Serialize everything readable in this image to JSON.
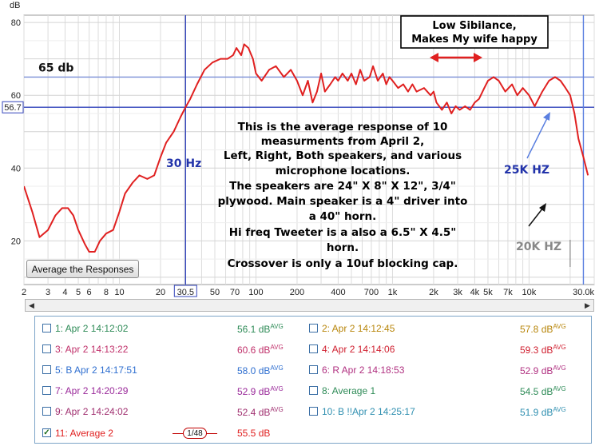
{
  "chart_data": {
    "type": "line",
    "title": "",
    "xlabel": "",
    "ylabel": "dB",
    "x_scale": "log",
    "xlim": [
      2,
      30000
    ],
    "ylim": [
      8,
      82
    ],
    "grid": true,
    "x_tick_labels": [
      {
        "value": 2,
        "label": "2"
      },
      {
        "value": 3,
        "label": "3"
      },
      {
        "value": 4,
        "label": "4"
      },
      {
        "value": 5,
        "label": "5"
      },
      {
        "value": 6,
        "label": "6"
      },
      {
        "value": 8,
        "label": "8"
      },
      {
        "value": 10,
        "label": "10"
      },
      {
        "value": 20,
        "label": "20"
      },
      {
        "value": 50,
        "label": "50"
      },
      {
        "value": 70,
        "label": "70"
      },
      {
        "value": 100,
        "label": "100"
      },
      {
        "value": 200,
        "label": "200"
      },
      {
        "value": 400,
        "label": "400"
      },
      {
        "value": 700,
        "label": "700"
      },
      {
        "value": 1000,
        "label": "1k"
      },
      {
        "value": 2000,
        "label": "2k"
      },
      {
        "value": 3000,
        "label": "3k"
      },
      {
        "value": 4000,
        "label": "4k"
      },
      {
        "value": 5000,
        "label": "5k"
      },
      {
        "value": 7000,
        "label": "7k"
      },
      {
        "value": 10000,
        "label": "10k"
      },
      {
        "value": 30000,
        "label": "30.0k"
      }
    ],
    "y_tick_labels": [
      {
        "value": 80,
        "label": "80"
      },
      {
        "value": 60,
        "label": "60"
      },
      {
        "value": 40,
        "label": "40"
      },
      {
        "value": 20,
        "label": "20"
      }
    ],
    "cursor": {
      "x": 30.5,
      "x_label": "30.5",
      "y": 56.7,
      "y_label": "56.7"
    },
    "marker_lines": [
      {
        "y": 65,
        "label": "65 db"
      },
      {
        "x": 25000,
        "label": "25K HZ"
      },
      {
        "x": 20000,
        "label": "20K HZ"
      }
    ],
    "series": [
      {
        "name": "11: Average 2",
        "color": "#e02020",
        "points": [
          [
            2,
            35
          ],
          [
            2.3,
            28
          ],
          [
            2.6,
            21
          ],
          [
            3,
            23
          ],
          [
            3.4,
            27
          ],
          [
            3.8,
            29
          ],
          [
            4.2,
            29
          ],
          [
            4.6,
            27
          ],
          [
            5,
            23
          ],
          [
            5.6,
            19
          ],
          [
            6,
            17
          ],
          [
            6.6,
            17
          ],
          [
            7.2,
            20
          ],
          [
            8,
            22
          ],
          [
            9,
            23
          ],
          [
            10,
            28
          ],
          [
            11,
            33
          ],
          [
            12.5,
            36
          ],
          [
            14,
            38
          ],
          [
            16,
            37
          ],
          [
            18,
            38
          ],
          [
            20,
            43
          ],
          [
            22,
            47
          ],
          [
            25,
            50
          ],
          [
            28,
            54
          ],
          [
            30.5,
            56.7
          ],
          [
            33,
            59
          ],
          [
            37,
            63
          ],
          [
            42,
            67
          ],
          [
            48,
            69
          ],
          [
            55,
            70
          ],
          [
            62,
            70
          ],
          [
            68,
            71
          ],
          [
            72,
            73
          ],
          [
            78,
            71
          ],
          [
            82,
            74
          ],
          [
            88,
            73
          ],
          [
            95,
            70
          ],
          [
            100,
            66
          ],
          [
            110,
            64
          ],
          [
            125,
            67
          ],
          [
            140,
            68
          ],
          [
            160,
            65
          ],
          [
            180,
            67
          ],
          [
            200,
            64
          ],
          [
            220,
            60
          ],
          [
            240,
            64
          ],
          [
            260,
            58
          ],
          [
            280,
            61
          ],
          [
            300,
            66
          ],
          [
            320,
            61
          ],
          [
            350,
            63
          ],
          [
            380,
            65
          ],
          [
            400,
            64
          ],
          [
            430,
            66
          ],
          [
            470,
            64
          ],
          [
            500,
            66
          ],
          [
            540,
            63
          ],
          [
            580,
            67
          ],
          [
            620,
            64
          ],
          [
            680,
            65
          ],
          [
            720,
            68
          ],
          [
            780,
            64
          ],
          [
            850,
            66
          ],
          [
            900,
            63
          ],
          [
            950,
            65
          ],
          [
            1000,
            64
          ],
          [
            1100,
            62
          ],
          [
            1200,
            63
          ],
          [
            1300,
            61
          ],
          [
            1400,
            63
          ],
          [
            1500,
            61
          ],
          [
            1700,
            62
          ],
          [
            1900,
            60
          ],
          [
            2000,
            61
          ],
          [
            2100,
            58
          ],
          [
            2300,
            56
          ],
          [
            2500,
            58
          ],
          [
            2700,
            55
          ],
          [
            2900,
            57
          ],
          [
            3100,
            56
          ],
          [
            3400,
            57
          ],
          [
            3700,
            56
          ],
          [
            4000,
            58
          ],
          [
            4300,
            59
          ],
          [
            4700,
            62
          ],
          [
            5000,
            64
          ],
          [
            5500,
            65
          ],
          [
            6000,
            64
          ],
          [
            6700,
            61
          ],
          [
            7500,
            63
          ],
          [
            8200,
            60
          ],
          [
            9000,
            62
          ],
          [
            10000,
            60
          ],
          [
            11000,
            57
          ],
          [
            12500,
            61
          ],
          [
            14000,
            64
          ],
          [
            15500,
            65
          ],
          [
            17000,
            64
          ],
          [
            18500,
            62
          ],
          [
            20000,
            60
          ],
          [
            21500,
            55
          ],
          [
            23000,
            48
          ],
          [
            25000,
            43
          ],
          [
            27000,
            38
          ]
        ]
      }
    ],
    "annotations": [
      {
        "id": "sibilance",
        "lines": [
          "Low Sibilance,",
          "Makes My wife happy"
        ]
      },
      {
        "id": "hz30",
        "lines": [
          "30 Hz"
        ]
      },
      {
        "id": "description",
        "lines": [
          "This is the average response of 10",
          "measurments from April 2,",
          "Left, Right, Both speakers, and various",
          "microphone locations.",
          "The speakers are 24\" X 8\" X 12\", 3/4\"",
          "plywood. Main speaker is a 4\" driver into",
          "a 40\" horn.",
          "Hi freq Tweeter is a also a 6.5\" X 4.5\"",
          "horn.",
          "Crossover is only a 10uf blocking cap."
        ]
      }
    ]
  },
  "controls": {
    "average_button": "Average the Responses"
  },
  "legend": {
    "smoothing": "1/48",
    "items": [
      {
        "name": "1: Apr 2 14:12:02",
        "value": "56.1 dB",
        "unit_sup": "AVG",
        "color": "#2e8b57",
        "checked": false
      },
      {
        "name": "2: Apr 2 14:12:45",
        "value": "57.8 dB",
        "unit_sup": "AVG",
        "color": "#b8860b",
        "checked": false
      },
      {
        "name": "3: Apr 2 14:13:22",
        "value": "60.6 dB",
        "unit_sup": "AVG",
        "color": "#c0306a",
        "checked": false
      },
      {
        "name": "4: Apr 2 14:14:06",
        "value": "59.3 dB",
        "unit_sup": "AVG",
        "color": "#d02030",
        "checked": false
      },
      {
        "name": "5: B Apr 2 14:17:51",
        "value": "58.0 dB",
        "unit_sup": "AVG",
        "color": "#2f6fd0",
        "checked": false
      },
      {
        "name": "6: R Apr 2 14:18:53",
        "value": "52.9 dB",
        "unit_sup": "AVG",
        "color": "#b03080",
        "checked": false
      },
      {
        "name": "7: Apr 2 14:20:29",
        "value": "52.9 dB",
        "unit_sup": "AVG",
        "color": "#9a2a9a",
        "checked": false
      },
      {
        "name": "8: Average 1",
        "value": "54.5 dB",
        "unit_sup": "AVG",
        "color": "#2e8b57",
        "checked": false
      },
      {
        "name": "9: Apr 2 14:24:02",
        "value": "52.4 dB",
        "unit_sup": "AVG",
        "color": "#a03070",
        "checked": false
      },
      {
        "name": "10: B !!Apr 2 14:25:17",
        "value": "51.9 dB",
        "unit_sup": "AVG",
        "color": "#2f8fb0",
        "checked": false
      },
      {
        "name": "11: Average 2",
        "value": "55.5 dB",
        "unit_sup": "",
        "color": "#e02020",
        "checked": true
      }
    ]
  }
}
